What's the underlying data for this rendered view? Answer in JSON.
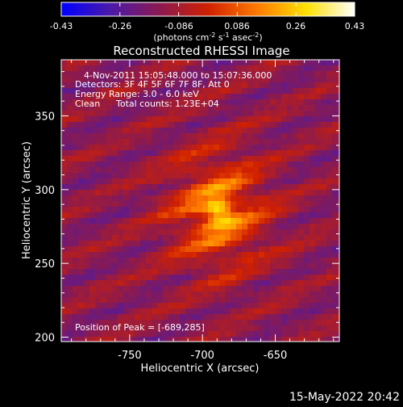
{
  "figure": {
    "title": "Reconstructed RHESSI Image",
    "timestamp": "15-May-2022 20:42"
  },
  "colorbar": {
    "tick_labels": [
      "-0.43",
      "-0.26",
      "-0.086",
      "0.086",
      "0.26",
      "0.43"
    ],
    "units_parts": {
      "a": "(photons cm",
      "a_sup": "-2",
      "b": " s",
      "b_sup": "-1",
      "c": " asec",
      "c_sup": "-2",
      "d": ")"
    },
    "colormap_name": "red-temperature",
    "stops": [
      "#0000ff",
      "#4b1aa8",
      "#8a1a50",
      "#d02000",
      "#ff7a00",
      "#ffe000",
      "#ffffff"
    ]
  },
  "image": {
    "x_label": "Heliocentric X (arcsec)",
    "y_label": "Heliocentric Y (arcsec)",
    "x_ticks": [
      "-750",
      "-700",
      "-650"
    ],
    "y_ticks": [
      "200",
      "250",
      "300",
      "350"
    ],
    "x_range": [
      -797,
      -606
    ],
    "y_range": [
      197,
      388
    ],
    "peak": [
      -689,
      285
    ]
  },
  "annotations": {
    "time_range": "4-Nov-2011 15:05:48.000 to 15:07:36.000",
    "detectors": "Detectors: 3F 4F 5F 6F 7F 8F, Att 0",
    "energy": "Energy Range: 3.0 - 6.0 keV",
    "method": "Clean",
    "counts": "Total counts: 1.23E+04",
    "peak_text": "Position of Peak = [-689,285]"
  }
}
